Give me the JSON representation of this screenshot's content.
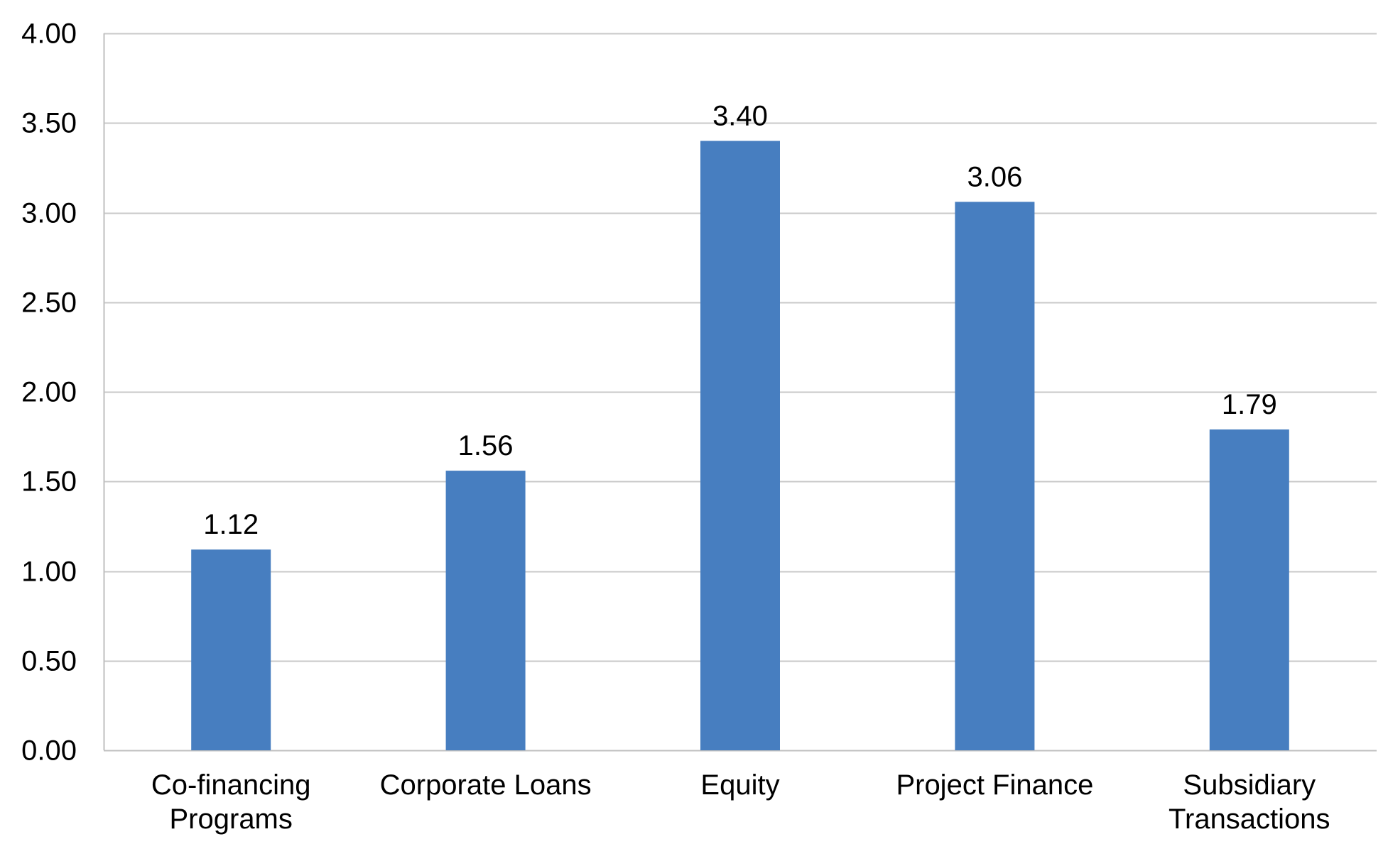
{
  "chart_data": {
    "type": "bar",
    "title": "",
    "xlabel": "",
    "ylabel": "",
    "categories": [
      [
        "Co-financing",
        "Programs"
      ],
      [
        "Corporate Loans"
      ],
      [
        "Equity"
      ],
      [
        "Project Finance"
      ],
      [
        "Subsidiary",
        "Transactions"
      ]
    ],
    "values": [
      1.12,
      1.56,
      3.4,
      3.06,
      1.79
    ],
    "value_labels": [
      "1.12",
      "1.56",
      "3.40",
      "3.06",
      "1.79"
    ],
    "ylim": [
      0,
      4
    ],
    "yticks": [
      0,
      0.5,
      1.0,
      1.5,
      2.0,
      2.5,
      3.0,
      3.5,
      4.0
    ],
    "ytick_labels": [
      "0.00",
      "0.50",
      "1.00",
      "1.50",
      "2.00",
      "2.50",
      "3.00",
      "3.50",
      "4.00"
    ],
    "grid": true,
    "legend": false,
    "colors": {
      "bar": "#477ec0",
      "grid": "#c8c8c8",
      "axis": "#bfbfbf",
      "text": "#000000"
    }
  }
}
